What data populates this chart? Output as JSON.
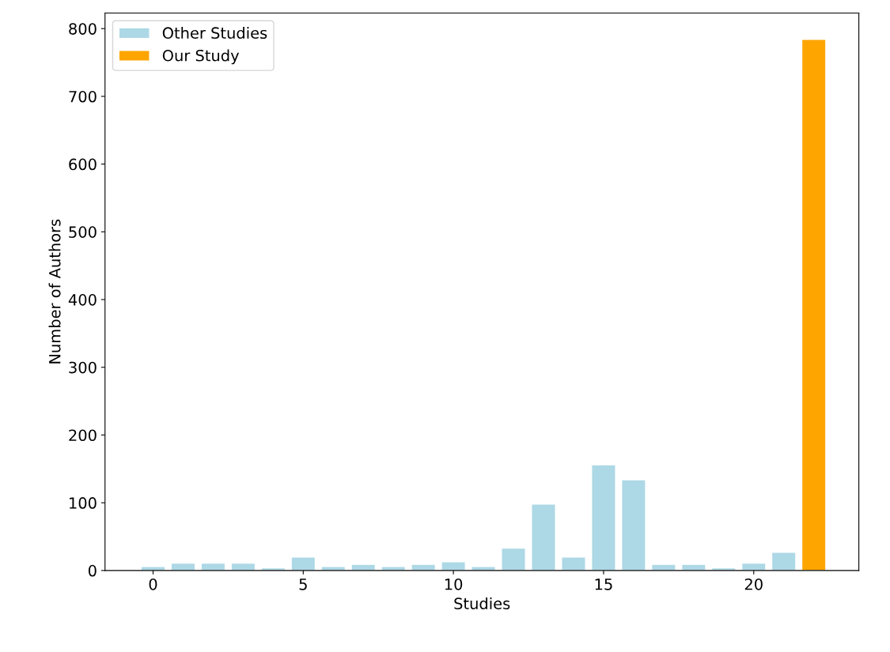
{
  "chart_data": {
    "type": "bar",
    "xlabel": "Studies",
    "ylabel": "Number of Authors",
    "x": [
      0,
      1,
      2,
      3,
      4,
      5,
      6,
      7,
      8,
      9,
      10,
      11,
      12,
      13,
      14,
      15,
      16,
      17,
      18,
      19,
      20,
      21,
      22
    ],
    "series": [
      {
        "name": "Other Studies",
        "color": "#add8e6",
        "values": [
          6,
          11,
          11,
          11,
          4,
          20,
          6,
          9,
          6,
          9,
          13,
          6,
          33,
          98,
          20,
          156,
          134,
          9,
          9,
          4,
          11,
          27,
          null
        ]
      },
      {
        "name": "Our Study",
        "color": "#ffa500",
        "values": [
          null,
          null,
          null,
          null,
          null,
          null,
          null,
          null,
          null,
          null,
          null,
          null,
          null,
          null,
          null,
          null,
          null,
          null,
          null,
          null,
          null,
          null,
          784
        ]
      }
    ],
    "xlim": [
      -1.6,
      23.5
    ],
    "xticks": [
      0,
      5,
      10,
      15,
      20
    ],
    "ylim": [
      0,
      823
    ],
    "yticks": [
      0,
      100,
      200,
      300,
      400,
      500,
      600,
      700,
      800
    ],
    "grid": false,
    "legend": "top left"
  }
}
